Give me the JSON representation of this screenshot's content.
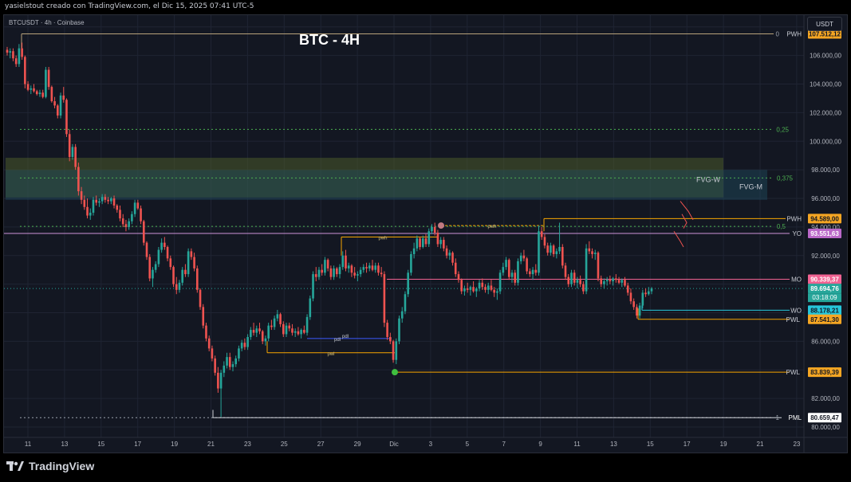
{
  "header": {
    "text": "yasielstout creado con TradingView.com, el Dic 15, 2025 07:41 UTC-5"
  },
  "chart_info": {
    "symbol_line": "BTCUSDT · 4h · Coinbase",
    "title": "BTC - 4H",
    "currency_button": "USDT"
  },
  "footer": {
    "brand": "TradingView"
  },
  "colors": {
    "bg": "#131722",
    "up": "#26a69a",
    "down": "#ef5350",
    "grid": "#1f2433",
    "axis_text": "#b2b5be",
    "fib": "#4caf50",
    "pwh": "#f7a600",
    "pwl": "#f7a600",
    "yo": "#ce93d8",
    "mo": "#f06292",
    "wo": "#26c6da",
    "pml": "#ffffff"
  },
  "chart_data": {
    "type": "candlestick",
    "title": "BTC - 4H",
    "y_axis": {
      "ticks": [
        "108.000,00",
        "106.000,00",
        "104.000,00",
        "102.000,00",
        "100.000,00",
        "98.000,00",
        "96.000,00",
        "94.000,00",
        "92.000,00",
        "90.000,00",
        "88.000,00",
        "86.000,00",
        "84.000,00",
        "82.000,00",
        "80.000,00"
      ],
      "ylim": [
        79500,
        108600
      ]
    },
    "x_axis": {
      "ticks": [
        "11",
        "13",
        "15",
        "17",
        "19",
        "21",
        "23",
        "25",
        "27",
        "29",
        "Dic",
        "3",
        "5",
        "7",
        "9",
        "11",
        "13",
        "15",
        "17",
        "19",
        "21",
        "23"
      ]
    },
    "candles": [
      [
        106400,
        106600,
        106000,
        106200
      ],
      [
        106200,
        106500,
        105800,
        106300
      ],
      [
        106300,
        106500,
        105600,
        105800
      ],
      [
        105800,
        106000,
        105200,
        105400
      ],
      [
        105400,
        106800,
        105200,
        106500
      ],
      [
        106500,
        106900,
        105700,
        105900
      ],
      [
        105900,
        106000,
        103700,
        104000
      ],
      [
        104000,
        104200,
        103500,
        103600
      ],
      [
        103600,
        103900,
        103300,
        103700
      ],
      [
        103700,
        104000,
        103400,
        103500
      ],
      [
        103500,
        103600,
        103200,
        103300
      ],
      [
        103300,
        103600,
        103100,
        103400
      ],
      [
        103400,
        103600,
        103000,
        103100
      ],
      [
        103100,
        105200,
        103000,
        105000
      ],
      [
        105000,
        105200,
        103600,
        103800
      ],
      [
        103800,
        103900,
        102700,
        102800
      ],
      [
        102800,
        103100,
        102300,
        102500
      ],
      [
        102500,
        102600,
        101600,
        101800
      ],
      [
        101800,
        103400,
        101600,
        103200
      ],
      [
        103200,
        103800,
        102700,
        102900
      ],
      [
        102900,
        103000,
        100300,
        100500
      ],
      [
        100500,
        100800,
        98600,
        98900
      ],
      [
        98900,
        99800,
        98700,
        99600
      ],
      [
        99600,
        99800,
        98000,
        98200
      ],
      [
        98200,
        98500,
        96200,
        96500
      ],
      [
        96500,
        96800,
        95600,
        95900
      ],
      [
        95900,
        96200,
        95200,
        95400
      ],
      [
        95400,
        96000,
        94600,
        94800
      ],
      [
        94800,
        95300,
        94500,
        95000
      ],
      [
        95000,
        96100,
        94800,
        95900
      ],
      [
        95900,
        96200,
        95500,
        95700
      ],
      [
        95700,
        96000,
        95400,
        95800
      ],
      [
        95800,
        96300,
        95600,
        96100
      ],
      [
        96100,
        96300,
        95700,
        95900
      ],
      [
        95900,
        96100,
        95600,
        95800
      ],
      [
        95800,
        96100,
        95600,
        96000
      ],
      [
        96000,
        96200,
        95300,
        95500
      ],
      [
        95500,
        95600,
        95000,
        95200
      ],
      [
        95200,
        95500,
        94400,
        94600
      ],
      [
        94600,
        94900,
        94000,
        94200
      ],
      [
        94200,
        94500,
        93700,
        94000
      ],
      [
        94000,
        94600,
        93800,
        94400
      ],
      [
        94400,
        95100,
        94200,
        94900
      ],
      [
        94900,
        95900,
        94700,
        95700
      ],
      [
        95700,
        95900,
        95200,
        95300
      ],
      [
        95300,
        95500,
        94200,
        94400
      ],
      [
        94400,
        94500,
        92700,
        92900
      ],
      [
        92900,
        93000,
        91700,
        91900
      ],
      [
        91900,
        92100,
        90200,
        90400
      ],
      [
        90400,
        91200,
        89800,
        91000
      ],
      [
        91000,
        91600,
        90800,
        91400
      ],
      [
        91400,
        92600,
        91200,
        92400
      ],
      [
        92400,
        93200,
        92200,
        92900
      ],
      [
        92900,
        93300,
        92400,
        92600
      ],
      [
        92600,
        92700,
        91600,
        91800
      ],
      [
        91800,
        92000,
        91000,
        91200
      ],
      [
        91200,
        91300,
        89800,
        90000
      ],
      [
        90000,
        90500,
        89300,
        89600
      ],
      [
        89600,
        90300,
        89400,
        90100
      ],
      [
        90100,
        91200,
        89900,
        91000
      ],
      [
        91000,
        91400,
        90500,
        90700
      ],
      [
        90700,
        92500,
        90500,
        92300
      ],
      [
        92300,
        92500,
        91700,
        91900
      ],
      [
        91900,
        92200,
        90900,
        91100
      ],
      [
        91100,
        91300,
        89400,
        89600
      ],
      [
        89600,
        89700,
        88200,
        88400
      ],
      [
        88400,
        88600,
        86900,
        87100
      ],
      [
        87100,
        87300,
        86000,
        86200
      ],
      [
        86200,
        86400,
        85300,
        85500
      ],
      [
        85500,
        85700,
        84600,
        84800
      ],
      [
        84800,
        85000,
        83600,
        83800
      ],
      [
        83800,
        84200,
        82400,
        82700
      ],
      [
        82700,
        84000,
        80700,
        83800
      ],
      [
        83800,
        84600,
        83500,
        84300
      ],
      [
        84300,
        85200,
        84100,
        84900
      ],
      [
        84900,
        85200,
        84000,
        84200
      ],
      [
        84200,
        84600,
        83900,
        84400
      ],
      [
        84400,
        85000,
        84200,
        84800
      ],
      [
        84800,
        85700,
        84600,
        85500
      ],
      [
        85500,
        86100,
        85300,
        85900
      ],
      [
        85900,
        86200,
        85400,
        85600
      ],
      [
        85600,
        86500,
        85400,
        86300
      ],
      [
        86300,
        87000,
        86100,
        86800
      ],
      [
        86800,
        87300,
        86400,
        86600
      ],
      [
        86600,
        87100,
        86300,
        86900
      ],
      [
        86900,
        87300,
        86500,
        86700
      ],
      [
        86700,
        86800,
        85800,
        86000
      ],
      [
        86000,
        86400,
        85700,
        86200
      ],
      [
        86200,
        87300,
        86000,
        87100
      ],
      [
        87100,
        87500,
        86800,
        87000
      ],
      [
        87000,
        87800,
        86800,
        87600
      ],
      [
        87600,
        88200,
        87400,
        87900
      ],
      [
        87900,
        88000,
        87000,
        87200
      ],
      [
        87200,
        87400,
        86300,
        86500
      ],
      [
        86500,
        87300,
        86300,
        87100
      ],
      [
        87100,
        87300,
        86700,
        86900
      ],
      [
        86900,
        87200,
        86400,
        86600
      ],
      [
        86600,
        86900,
        86300,
        86700
      ],
      [
        86700,
        87000,
        86400,
        86500
      ],
      [
        86500,
        86900,
        86200,
        86800
      ],
      [
        86800,
        87100,
        86500,
        86600
      ],
      [
        86600,
        87900,
        86400,
        87700
      ],
      [
        87700,
        89200,
        87500,
        89000
      ],
      [
        89000,
        90900,
        88800,
        90700
      ],
      [
        90700,
        91200,
        90200,
        90500
      ],
      [
        90500,
        91200,
        90300,
        91000
      ],
      [
        91000,
        91400,
        90600,
        90800
      ],
      [
        90800,
        91900,
        90600,
        91700
      ],
      [
        91700,
        91800,
        90900,
        91100
      ],
      [
        91100,
        91300,
        90300,
        90500
      ],
      [
        90500,
        91300,
        90300,
        91100
      ],
      [
        91100,
        91200,
        90500,
        90700
      ],
      [
        90700,
        91400,
        90400,
        91200
      ],
      [
        91200,
        92300,
        91000,
        92000
      ],
      [
        92000,
        92400,
        90900,
        91100
      ],
      [
        91100,
        91500,
        90800,
        91300
      ],
      [
        91300,
        91400,
        90500,
        90800
      ],
      [
        90800,
        91200,
        90400,
        90600
      ],
      [
        90600,
        90900,
        90200,
        90700
      ],
      [
        90700,
        91200,
        90500,
        91000
      ],
      [
        91000,
        91400,
        90800,
        91200
      ],
      [
        91200,
        91500,
        90800,
        91100
      ],
      [
        91100,
        91500,
        90900,
        91300
      ],
      [
        91300,
        91700,
        90900,
        91000
      ],
      [
        91000,
        91500,
        90800,
        91300
      ],
      [
        91300,
        91500,
        90600,
        90800
      ],
      [
        90800,
        91200,
        90500,
        90700
      ],
      [
        90700,
        90900,
        87000,
        87300
      ],
      [
        87300,
        87500,
        86100,
        86300
      ],
      [
        86300,
        86600,
        85800,
        86000
      ],
      [
        86000,
        86100,
        84500,
        84700
      ],
      [
        84700,
        86200,
        84400,
        86000
      ],
      [
        86000,
        87800,
        85800,
        87600
      ],
      [
        87600,
        88400,
        87300,
        88100
      ],
      [
        88100,
        89500,
        87900,
        89300
      ],
      [
        89300,
        91000,
        89100,
        90800
      ],
      [
        90800,
        92300,
        90600,
        92100
      ],
      [
        92100,
        92900,
        91800,
        92500
      ],
      [
        92500,
        93400,
        92300,
        93200
      ],
      [
        93200,
        93300,
        92400,
        92600
      ],
      [
        92600,
        93400,
        92500,
        93200
      ],
      [
        93200,
        93500,
        92600,
        92800
      ],
      [
        92800,
        93900,
        92600,
        93700
      ],
      [
        93700,
        94200,
        93500,
        94000
      ],
      [
        94000,
        94300,
        93400,
        93600
      ],
      [
        93600,
        93800,
        92600,
        92800
      ],
      [
        92800,
        93300,
        92500,
        93100
      ],
      [
        93100,
        93300,
        92300,
        92500
      ],
      [
        92500,
        92700,
        91800,
        92000
      ],
      [
        92000,
        92400,
        91700,
        92200
      ],
      [
        92200,
        92300,
        91300,
        91500
      ],
      [
        91500,
        91800,
        90500,
        90700
      ],
      [
        90700,
        90900,
        90100,
        90300
      ],
      [
        90300,
        90400,
        89300,
        89500
      ],
      [
        89500,
        89900,
        89200,
        89700
      ],
      [
        89700,
        90100,
        89400,
        89600
      ],
      [
        89600,
        89900,
        89200,
        89800
      ],
      [
        89800,
        90200,
        89400,
        89500
      ],
      [
        89500,
        89800,
        89100,
        89700
      ],
      [
        89700,
        90300,
        89500,
        90100
      ],
      [
        90100,
        90400,
        89600,
        89800
      ],
      [
        89800,
        90000,
        89400,
        89600
      ],
      [
        89600,
        90100,
        89300,
        89900
      ],
      [
        89900,
        90300,
        89500,
        89600
      ],
      [
        89600,
        89800,
        89100,
        89400
      ],
      [
        89400,
        89700,
        88900,
        89500
      ],
      [
        89500,
        91000,
        89300,
        90800
      ],
      [
        90800,
        91500,
        90600,
        91200
      ],
      [
        91200,
        91900,
        91000,
        91700
      ],
      [
        91700,
        91800,
        90300,
        90500
      ],
      [
        90500,
        91000,
        90100,
        90800
      ],
      [
        90800,
        91000,
        89900,
        90100
      ],
      [
        90100,
        91800,
        89900,
        91600
      ],
      [
        91600,
        92200,
        91400,
        92000
      ],
      [
        92000,
        92400,
        91600,
        91800
      ],
      [
        91800,
        91900,
        90700,
        90900
      ],
      [
        90900,
        91100,
        90500,
        90700
      ],
      [
        90700,
        91200,
        90300,
        91000
      ],
      [
        91000,
        91400,
        90600,
        90800
      ],
      [
        90800,
        94100,
        90600,
        93700
      ],
      [
        93700,
        94000,
        93100,
        93300
      ],
      [
        93300,
        93500,
        92500,
        92700
      ],
      [
        92700,
        92900,
        92000,
        92200
      ],
      [
        92200,
        92900,
        92000,
        92700
      ],
      [
        92700,
        92800,
        91900,
        92100
      ],
      [
        92100,
        92500,
        91800,
        92300
      ],
      [
        92300,
        94300,
        92100,
        92600
      ],
      [
        92600,
        92800,
        91100,
        91300
      ],
      [
        91300,
        91500,
        90300,
        90500
      ],
      [
        90500,
        90700,
        89800,
        90000
      ],
      [
        90000,
        91000,
        89800,
        90800
      ],
      [
        90800,
        91000,
        89900,
        90100
      ],
      [
        90100,
        90500,
        89700,
        90300
      ],
      [
        90300,
        90600,
        89800,
        90000
      ],
      [
        90000,
        90200,
        89300,
        89500
      ],
      [
        89500,
        92800,
        89300,
        92500
      ],
      [
        92500,
        93000,
        92100,
        92300
      ],
      [
        92300,
        92500,
        91800,
        92100
      ],
      [
        92100,
        92400,
        91700,
        92200
      ],
      [
        92200,
        92300,
        90200,
        90400
      ],
      [
        90400,
        90600,
        89800,
        90000
      ],
      [
        90000,
        90400,
        89700,
        90200
      ],
      [
        90200,
        90500,
        89900,
        90300
      ],
      [
        90300,
        90600,
        90000,
        90200
      ],
      [
        90200,
        90500,
        89900,
        90400
      ],
      [
        90400,
        90700,
        90100,
        90300
      ],
      [
        90300,
        90500,
        90000,
        90100
      ],
      [
        90100,
        90400,
        89800,
        90300
      ],
      [
        90300,
        90500,
        89800,
        89900
      ],
      [
        89900,
        90100,
        89200,
        89400
      ],
      [
        89400,
        89700,
        88600,
        88800
      ],
      [
        88800,
        89000,
        88200,
        88400
      ],
      [
        88400,
        88600,
        87600,
        87800
      ],
      [
        87800,
        88700,
        87600,
        88500
      ],
      [
        88500,
        89600,
        88300,
        89400
      ],
      [
        89400,
        89700,
        89100,
        89300
      ],
      [
        89300,
        89800,
        89200,
        89500
      ],
      [
        89500,
        89800,
        89300,
        89700
      ]
    ],
    "levels": [
      {
        "label": "PWH",
        "value": "107.512,12",
        "price": 107512.12
      },
      {
        "label": "0,25",
        "value": "",
        "price": 100830
      },
      {
        "label": "0,375",
        "value": "",
        "price": 97430
      },
      {
        "label": "PWH",
        "value": "94.589,00",
        "price": 94589
      },
      {
        "label": "0,5",
        "value": "",
        "price": 94040
      },
      {
        "label": "YO",
        "value": "93.551,63",
        "price": 93551.63
      },
      {
        "label": "MO",
        "value": "90.339,37",
        "price": 90339.37
      },
      {
        "label": "WO",
        "value": "88.178,21",
        "price": 88178.21
      },
      {
        "label": "PWL",
        "value": "87.541,30",
        "price": 87541.3
      },
      {
        "label": "PWL",
        "value": "83.839,39",
        "price": 83839.39
      },
      {
        "label": "PML",
        "value": "80.659,47",
        "price": 80659.47
      },
      {
        "label": "0",
        "value": "",
        "price": 107512.12
      },
      {
        "label": "1",
        "value": "",
        "price": 80659.47
      }
    ],
    "last_price": {
      "value": "89.694,76",
      "countdown": "03:18:09",
      "price": 89694.76
    },
    "zones": [
      {
        "label": "FVG-W",
        "top": 98840,
        "bottom": 96070
      },
      {
        "label": "FVG-M",
        "top": 97990,
        "bottom": 95900
      }
    ],
    "small_labels": {
      "pwh": "pwh",
      "pwl": "pwl",
      "pdl": "pdl"
    }
  }
}
